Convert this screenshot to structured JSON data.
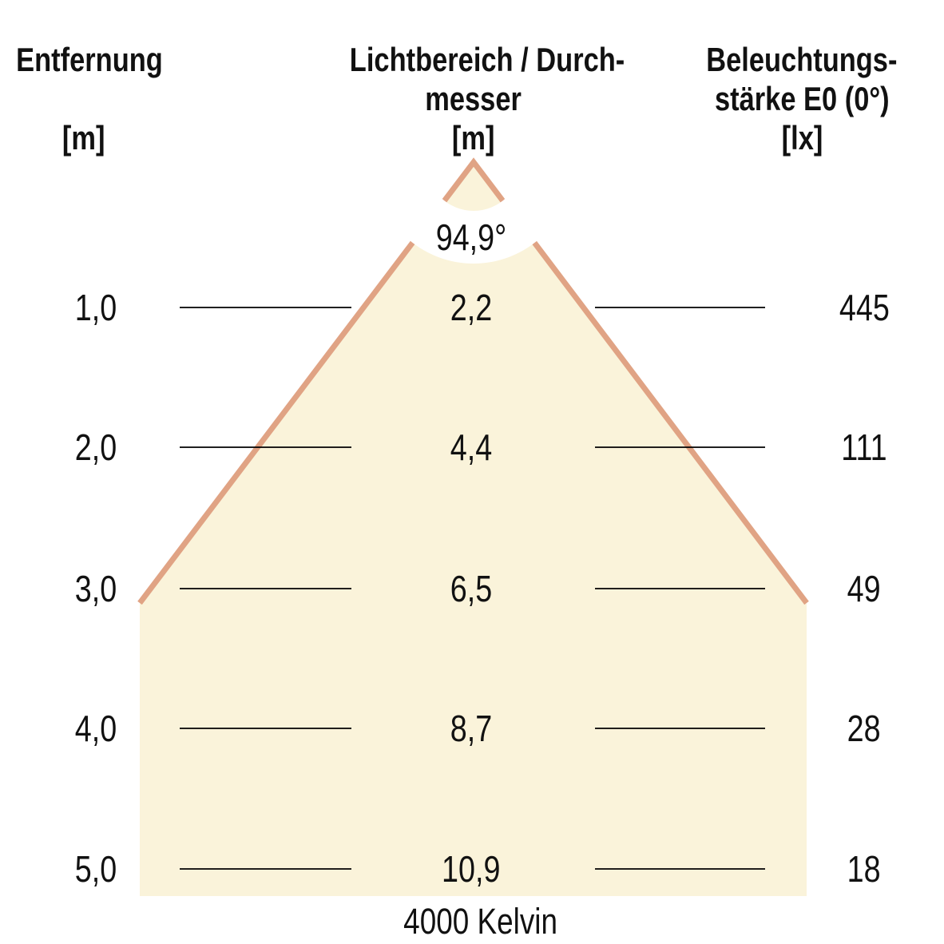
{
  "headers": {
    "distance": {
      "line1": "Entfernung",
      "line2": "",
      "line3": "[m]"
    },
    "diameter": {
      "line1": "Lichtbereich / Durch-",
      "line2": "messer",
      "line3": "[m]"
    },
    "illuminance": {
      "line1": "Beleuchtungs-",
      "line2": "stärke E0 (0°)",
      "line3": "[lx]"
    }
  },
  "beam_angle_label": "94,9°",
  "footer_label": "4000 Kelvin",
  "colors": {
    "background": "#FFFFFF",
    "cone_fill": "#FAF3DA",
    "cone_stroke": "#E0A384",
    "row_line": "#000000",
    "text": "#111111"
  },
  "chart_data": {
    "type": "table",
    "title": "Lichtkegeldiagramm (light cone diagram)",
    "columns": [
      {
        "key": "distance_m",
        "label": "Entfernung [m]"
      },
      {
        "key": "diameter_m",
        "label": "Lichtbereich / Durchmesser [m]"
      },
      {
        "key": "illuminance_lx",
        "label": "Beleuchtungsstärke E0 (0°) [lx]"
      }
    ],
    "rows": [
      {
        "distance_m": "1,0",
        "diameter_m": "2,2",
        "illuminance_lx": "445"
      },
      {
        "distance_m": "2,0",
        "diameter_m": "4,4",
        "illuminance_lx": "111"
      },
      {
        "distance_m": "3,0",
        "diameter_m": "6,5",
        "illuminance_lx": "49"
      },
      {
        "distance_m": "4,0",
        "diameter_m": "8,7",
        "illuminance_lx": "28"
      },
      {
        "distance_m": "5,0",
        "diameter_m": "10,9",
        "illuminance_lx": "18"
      }
    ],
    "beam_angle_deg": 94.9,
    "color_temperature_kelvin": 4000,
    "legend_position": "none",
    "grid": false
  }
}
